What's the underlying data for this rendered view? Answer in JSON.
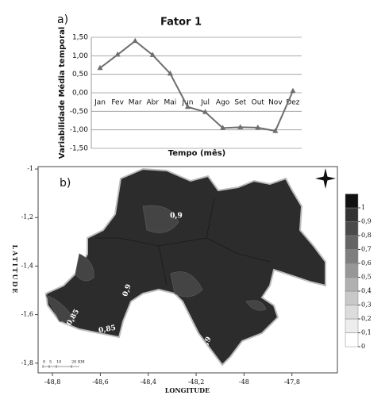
{
  "chart_data": [
    {
      "type": "line",
      "panel_label": "a)",
      "title": "Fator 1",
      "xlabel": "Tempo (mês)",
      "ylabel": "Variabilidade Média temporal",
      "categories": [
        "Jan",
        "Fev",
        "Mar",
        "Abr",
        "Mai",
        "Jun",
        "Jul",
        "Ago",
        "Set",
        "Out",
        "Nov",
        "Dez"
      ],
      "series": [
        {
          "color": "#6e6e6e",
          "values": [
            0.67,
            1.03,
            1.4,
            1.02,
            0.52,
            -0.38,
            -0.52,
            -0.95,
            -0.93,
            -0.94,
            -1.03,
            0.05
          ]
        }
      ],
      "ylim": [
        -1.5,
        1.5
      ],
      "yticks": [
        {
          "value": -1.5,
          "label": "-1,50"
        },
        {
          "value": -1,
          "label": "-1,00"
        },
        {
          "value": -0.5,
          "label": "-0,50"
        },
        {
          "value": 0,
          "label": "0,00"
        },
        {
          "value": 0.5,
          "label": "0,50"
        },
        {
          "value": 1,
          "label": "1,00"
        },
        {
          "value": 1.5,
          "label": "1,50"
        }
      ],
      "grid": true
    },
    {
      "type": "map",
      "panel_label": "b)",
      "xlabel": "LONGITUDE",
      "ylabel": "LATITUDE",
      "xlim": [
        -48.86,
        -47.61
      ],
      "ylim": [
        -1.84,
        -0.99
      ],
      "xticks": [
        {
          "value": -48.8,
          "label": "-48,8"
        },
        {
          "value": -48.6,
          "label": "-48,6"
        },
        {
          "value": -48.4,
          "label": "-48,4"
        },
        {
          "value": -48.2,
          "label": "-48,2"
        },
        {
          "value": -48,
          "label": "-48"
        },
        {
          "value": -47.8,
          "label": "-47,8"
        }
      ],
      "yticks": [
        -1,
        {
          "value": -1.2,
          "label": "-1,2"
        },
        {
          "value": -1.4,
          "label": "-1,4"
        },
        {
          "value": -1.6,
          "label": "-1,6"
        },
        {
          "value": -1.8,
          "label": "-1,8"
        }
      ],
      "colorbar_ticks": [
        0,
        {
          "value": 0.1,
          "label": "0,1"
        },
        {
          "value": 0.2,
          "label": "0,2"
        },
        {
          "value": 0.3,
          "label": "0,3"
        },
        {
          "value": 0.4,
          "label": "0,4"
        },
        {
          "value": 0.5,
          "label": "0,5"
        },
        {
          "value": 0.6,
          "label": "0,6"
        },
        {
          "value": 0.7,
          "label": "0,7"
        },
        {
          "value": 0.8,
          "label": "0,8"
        },
        {
          "value": 0.9,
          "label": "0,9"
        },
        1
      ],
      "colorbar_colors": [
        "#ffffff",
        "#ededed",
        "#dcdcdc",
        "#c8c8c8",
        "#b0b0b0",
        "#979797",
        "#7e7e7e",
        "#646464",
        "#4a4a4a",
        "#333333",
        "#111111"
      ],
      "annotations": [
        "0,9",
        "0,9",
        "0,9",
        "0,85",
        "0,85"
      ],
      "scale_bar_labels": [
        "0",
        "5",
        "10",
        "20 KM"
      ]
    }
  ]
}
